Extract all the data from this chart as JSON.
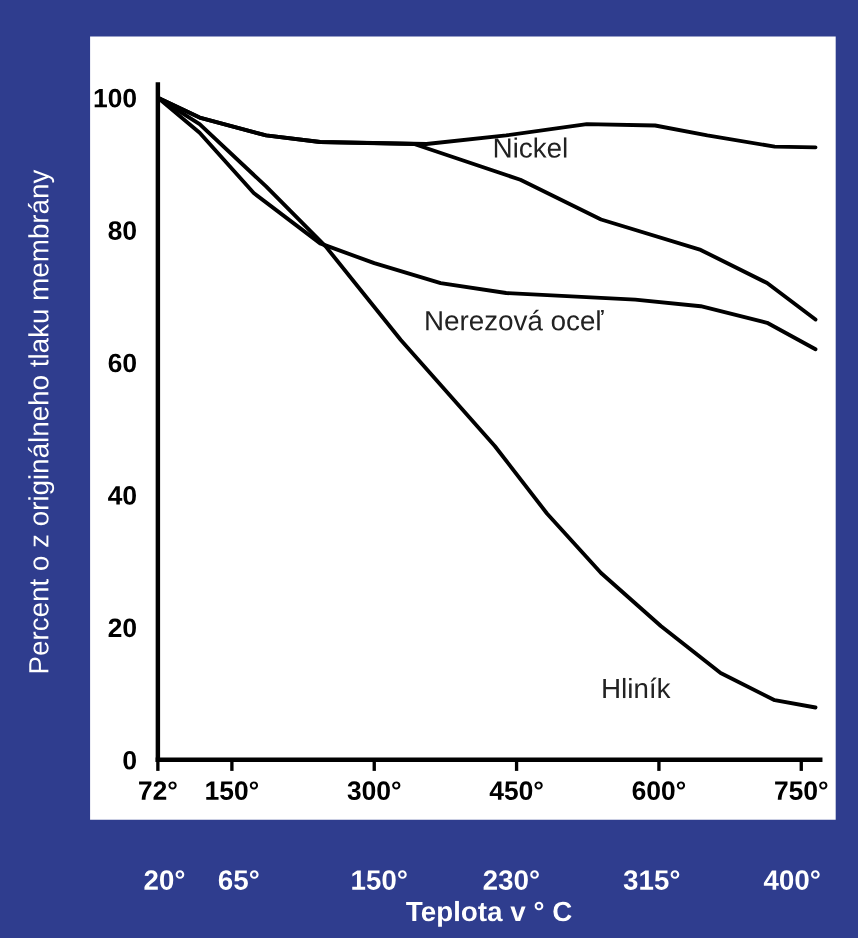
{
  "chart_data": {
    "type": "line",
    "xlabel": null,
    "ylabel": "Percent o z originálneho tlaku membrány",
    "x2label": "Teplota v ° C",
    "series": [
      {
        "color": "#000000",
        "x": [
          72,
          116,
          186,
          243,
          355,
          439,
          524,
          596,
          651,
          722,
          765
        ],
        "values": [
          100,
          97,
          94.3,
          93.3,
          93,
          94.3,
          96,
          95.8,
          94.3,
          92.6,
          92.5
        ]
      },
      {
        "name": "Nickel",
        "color": "#000000",
        "x": [
          72,
          116,
          186,
          243,
          342,
          454,
          539,
          644,
          714,
          765
        ],
        "values": [
          100,
          97,
          94.3,
          93.3,
          93,
          87.6,
          81.6,
          77,
          72,
          66.5
        ]
      },
      {
        "name": "Nerezová oceľ",
        "color": "#000000",
        "x": [
          72,
          116,
          173,
          243,
          300,
          370,
          439,
          575,
          644,
          714,
          765
        ],
        "values": [
          100,
          94.7,
          85.6,
          78,
          75,
          72,
          70.5,
          69.5,
          68.5,
          66,
          62
        ]
      },
      {
        "name": "Hliník",
        "color": "#000000",
        "x": [
          72,
          116,
          186,
          249,
          328,
          427,
          482,
          539,
          602,
          665,
          722,
          765
        ],
        "values": [
          100,
          96,
          86.6,
          77.5,
          63.4,
          47.4,
          37.2,
          28.2,
          20.2,
          13.1,
          9,
          7.9
        ]
      }
    ],
    "xlim": [
      72,
      770
    ],
    "xticks": [
      {
        "value": 72,
        "label": "72°"
      },
      {
        "value": 150,
        "label": "150°"
      },
      {
        "value": 300,
        "label": "300°"
      },
      {
        "value": 450,
        "label": "450°"
      },
      {
        "value": 600,
        "label": "600°"
      },
      {
        "value": 750,
        "label": "750°"
      }
    ],
    "x2lim": [
      16,
      417
    ],
    "x2ticks": [
      {
        "value": 20,
        "label": "20°"
      },
      {
        "value": 65,
        "label": "65°"
      },
      {
        "value": 150,
        "label": "150°"
      },
      {
        "value": 230,
        "label": "230°"
      },
      {
        "value": 315,
        "label": "315°"
      },
      {
        "value": 400,
        "label": "400°"
      }
    ],
    "ylim": [
      0,
      102
    ],
    "yticks": [
      0,
      20,
      40,
      60,
      80,
      100
    ],
    "grid": false,
    "legend": false,
    "marker": "none",
    "line_style": "solid"
  }
}
